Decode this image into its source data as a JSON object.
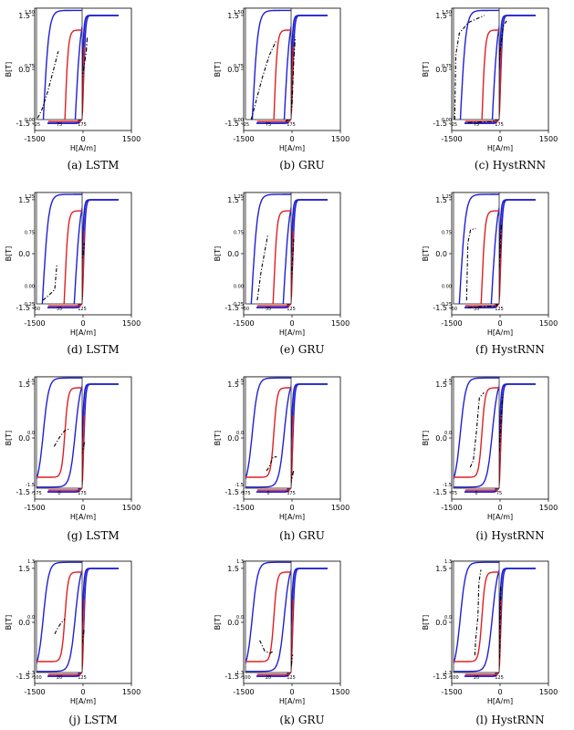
{
  "figure": {
    "captions": [
      "(a) LSTM",
      "(b) GRU",
      "(c) HystRNN",
      "(d) LSTM",
      "(e) GRU",
      "(f) HystRNN",
      "(g) LSTM",
      "(h) GRU",
      "(i) HystRNN",
      "(j) LSTM",
      "(k) GRU",
      "(l) HystRNN"
    ]
  },
  "colors": {
    "reference": "#1f1fd6",
    "training": "#e02020",
    "prediction": "#000000"
  },
  "chart_data": [
    {
      "panel": "a",
      "type": "line",
      "model": "LSTM",
      "xlabel": "H[A/m]",
      "ylabel": "B[T]",
      "xticks": [
        "-1500",
        "0",
        "1500"
      ],
      "yticks": [
        "-1.5",
        "0.0",
        "1.5"
      ],
      "xlim": [
        -1500,
        1500
      ],
      "ylim": [
        -1.7,
        1.7
      ],
      "inset": {
        "xticks": [
          "-25",
          "75",
          "175"
        ],
        "yticks": [
          "0.00",
          "0.75",
          "1.50"
        ],
        "xlim": [
          -25,
          175
        ],
        "ylim": [
          0,
          1.55
        ],
        "prediction": [
          [
            -20,
            0.02
          ],
          [
            0,
            0.15
          ],
          [
            25,
            0.4
          ],
          [
            50,
            0.7
          ],
          [
            70,
            0.95
          ]
        ]
      },
      "prediction_main": [
        [
          -50,
          -0.3
        ],
        [
          0,
          -0.1
        ],
        [
          50,
          0.2
        ],
        [
          100,
          0.5
        ],
        [
          130,
          0.9
        ]
      ]
    },
    {
      "panel": "b",
      "type": "line",
      "model": "GRU",
      "xlabel": "H[A/m]",
      "ylabel": "B[T]",
      "xticks": [
        "-1500",
        "0",
        "1500"
      ],
      "yticks": [
        "-1.5",
        "0.0",
        "1.5"
      ],
      "xlim": [
        -1500,
        1500
      ],
      "ylim": [
        -1.7,
        1.7
      ],
      "inset": {
        "xticks": [
          "-25",
          "75",
          "175"
        ],
        "yticks": [
          "0.00",
          "0.75",
          "1.50"
        ],
        "xlim": [
          -25,
          175
        ],
        "ylim": [
          0,
          1.55
        ],
        "prediction": [
          [
            0,
            0.0
          ],
          [
            25,
            0.3
          ],
          [
            50,
            0.6
          ],
          [
            80,
            0.9
          ],
          [
            110,
            1.1
          ]
        ]
      },
      "prediction_main": [
        [
          -200,
          -1.45
        ],
        [
          -50,
          -1.3
        ],
        [
          0,
          -1.0
        ],
        [
          50,
          0.2
        ],
        [
          100,
          0.9
        ]
      ]
    },
    {
      "panel": "c",
      "type": "line",
      "model": "HystRNN",
      "xlabel": "H[A/m]",
      "ylabel": "B[T]",
      "xticks": [
        "-1500",
        "0",
        "1500"
      ],
      "yticks": [
        "-1.5",
        "0.0",
        "1.5"
      ],
      "xlim": [
        -1500,
        1500
      ],
      "ylim": [
        -1.7,
        1.7
      ],
      "inset": {
        "xticks": [
          "-25",
          "75",
          "175"
        ],
        "yticks": [
          "0.00",
          "0.75",
          "1.50"
        ],
        "xlim": [
          -25,
          175
        ],
        "ylim": [
          0,
          1.55
        ],
        "prediction": [
          [
            -20,
            0.0
          ],
          [
            -15,
            0.9
          ],
          [
            0,
            1.2
          ],
          [
            40,
            1.35
          ],
          [
            110,
            1.45
          ]
        ]
      },
      "prediction_main": [
        [
          -1000,
          -1.48
        ],
        [
          -200,
          -1.45
        ],
        [
          0,
          0.5
        ],
        [
          100,
          1.2
        ],
        [
          200,
          1.35
        ]
      ]
    },
    {
      "panel": "d",
      "type": "line",
      "model": "LSTM",
      "xlabel": "H[A/m]",
      "ylabel": "B[T]",
      "xticks": [
        "-1500",
        "0",
        "1500"
      ],
      "yticks": [
        "-1.5",
        "0.0",
        "1.5"
      ],
      "xlim": [
        -1500,
        1500
      ],
      "ylim": [
        -1.7,
        1.7
      ],
      "inset": {
        "xticks": [
          "-50",
          "35",
          "125"
        ],
        "yticks": [
          "-0.25",
          "0.00",
          "0.75",
          "1.25"
        ],
        "xlim": [
          -50,
          125
        ],
        "ylim": [
          -0.25,
          1.3
        ],
        "prediction": [
          [
            -25,
            -0.2
          ],
          [
            0,
            -0.12
          ],
          [
            20,
            -0.05
          ],
          [
            28,
            0.3
          ]
        ]
      },
      "prediction_main": [
        [
          -60,
          -0.3
        ],
        [
          0,
          -0.05
        ],
        [
          30,
          0.3
        ]
      ]
    },
    {
      "panel": "e",
      "type": "line",
      "model": "GRU",
      "xlabel": "H[A/m]",
      "ylabel": "B[T]",
      "xticks": [
        "-1500",
        "0",
        "1500"
      ],
      "yticks": [
        "-1.5",
        "0.0",
        "1.5"
      ],
      "xlim": [
        -1500,
        1500
      ],
      "ylim": [
        -1.7,
        1.7
      ],
      "inset": {
        "xticks": [
          "-50",
          "35",
          "125"
        ],
        "yticks": [
          "-0.25",
          "0.00",
          "0.75",
          "1.25"
        ],
        "xlim": [
          -50,
          125
        ],
        "ylim": [
          -0.25,
          1.3
        ],
        "prediction": [
          [
            -5,
            -0.2
          ],
          [
            10,
            0.2
          ],
          [
            25,
            0.5
          ],
          [
            35,
            0.7
          ]
        ]
      },
      "prediction_main": [
        [
          -600,
          -1.3
        ],
        [
          -100,
          -1.0
        ],
        [
          0,
          -0.5
        ],
        [
          50,
          0.4
        ]
      ]
    },
    {
      "panel": "f",
      "type": "line",
      "model": "HystRNN",
      "xlabel": "H[A/m]",
      "ylabel": "B[T]",
      "xticks": [
        "-1500",
        "0",
        "1500"
      ],
      "yticks": [
        "-1.5",
        "0.0",
        "1.5"
      ],
      "xlim": [
        -1500,
        1500
      ],
      "ylim": [
        -1.7,
        1.7
      ],
      "inset": {
        "xticks": [
          "-50",
          "35",
          "125"
        ],
        "yticks": [
          "-0.25",
          "0.00",
          "0.75",
          "1.25"
        ],
        "xlim": [
          -50,
          125
        ],
        "ylim": [
          -0.25,
          1.3
        ],
        "prediction": [
          [
            0,
            -0.2
          ],
          [
            5,
            0.6
          ],
          [
            15,
            0.78
          ],
          [
            35,
            0.8
          ]
        ]
      },
      "prediction_main": [
        [
          -1000,
          -1.5
        ],
        [
          -100,
          -1.45
        ],
        [
          0,
          0.0
        ],
        [
          40,
          0.8
        ]
      ]
    },
    {
      "panel": "g",
      "type": "line",
      "model": "LSTM",
      "xlabel": "H[A/m]",
      "ylabel": "B[T]",
      "xticks": [
        "-1500",
        "0",
        "1500"
      ],
      "yticks": [
        "-1.5",
        "0.0",
        "1.5"
      ],
      "xlim": [
        -1500,
        1500
      ],
      "ylim": [
        -1.7,
        1.7
      ],
      "inset": {
        "xticks": [
          "-175",
          "0",
          "175"
        ],
        "yticks": [
          "-1.5",
          "0.0",
          "1.5"
        ],
        "xlim": [
          -175,
          175
        ],
        "ylim": [
          -1.6,
          1.6
        ],
        "prediction": [
          [
            -40,
            -0.4
          ],
          [
            0,
            -0.15
          ],
          [
            40,
            0.05
          ],
          [
            70,
            0.1
          ]
        ]
      },
      "prediction_main": [
        [
          -50,
          -0.5
        ],
        [
          0,
          -0.3
        ],
        [
          50,
          -0.1
        ]
      ]
    },
    {
      "panel": "h",
      "type": "line",
      "model": "GRU",
      "xlabel": "H[A/m]",
      "ylabel": "B[T]",
      "xticks": [
        "-1500",
        "0",
        "1500"
      ],
      "yticks": [
        "-1.5",
        "0.0",
        "1.5"
      ],
      "xlim": [
        -1500,
        1500
      ],
      "ylim": [
        -1.7,
        1.7
      ],
      "inset": {
        "xticks": [
          "-375",
          "0",
          "375"
        ],
        "yticks": [
          "-1.5",
          "0.0",
          "1.5"
        ],
        "xlim": [
          -375,
          375
        ],
        "ylim": [
          -1.6,
          1.6
        ],
        "prediction": [
          [
            -30,
            -1.1
          ],
          [
            10,
            -1.0
          ],
          [
            80,
            -0.7
          ],
          [
            140,
            -0.7
          ]
        ]
      },
      "prediction_main": [
        [
          -50,
          -1.3
        ],
        [
          0,
          -1.1
        ],
        [
          50,
          -0.9
        ]
      ]
    },
    {
      "panel": "i",
      "type": "line",
      "model": "HystRNN",
      "xlabel": "H[A/m]",
      "ylabel": "B[T]",
      "xticks": [
        "-1500",
        "0",
        "1500"
      ],
      "yticks": [
        "-1.5",
        "0.0",
        "1.5"
      ],
      "xlim": [
        -1500,
        1500
      ],
      "ylim": [
        -1.7,
        1.7
      ],
      "inset": {
        "xticks": [
          "-75",
          "0",
          "75"
        ],
        "yticks": [
          "-1.5",
          "0.0",
          "1.5"
        ],
        "xlim": [
          -75,
          75
        ],
        "ylim": [
          -1.6,
          1.6
        ],
        "prediction": [
          [
            -20,
            -1.0
          ],
          [
            -10,
            -0.8
          ],
          [
            0,
            0.0
          ],
          [
            10,
            1.0
          ],
          [
            25,
            1.15
          ]
        ]
      },
      "prediction_main": [
        [
          -80,
          -1.2
        ],
        [
          0,
          0.0
        ],
        [
          80,
          1.2
        ]
      ]
    },
    {
      "panel": "j",
      "type": "line",
      "model": "LSTM",
      "xlabel": "H[A/m]",
      "ylabel": "B[T]",
      "xticks": [
        "-1500",
        "0",
        "1500"
      ],
      "yticks": [
        "-1.5",
        "0.0",
        "1.5"
      ],
      "xlim": [
        -1500,
        1500
      ],
      "ylim": [
        -1.7,
        1.7
      ],
      "inset": {
        "xticks": [
          "-100",
          "20",
          "125"
        ],
        "yticks": [
          "-1.3",
          "0.0",
          "1.3"
        ],
        "xlim": [
          -100,
          125
        ],
        "ylim": [
          -1.3,
          1.3
        ],
        "prediction": [
          [
            -10,
            -0.4
          ],
          [
            0,
            -0.3
          ],
          [
            20,
            -0.15
          ],
          [
            40,
            -0.05
          ]
        ]
      },
      "prediction_main": [
        [
          -30,
          -0.6
        ],
        [
          0,
          -0.4
        ],
        [
          30,
          -0.2
        ]
      ]
    },
    {
      "panel": "k",
      "type": "line",
      "model": "GRU",
      "xlabel": "H[A/m]",
      "ylabel": "B[T]",
      "xticks": [
        "-1500",
        "0",
        "1500"
      ],
      "yticks": [
        "-1.5",
        "0.0",
        "1.5"
      ],
      "xlim": [
        -1500,
        1500
      ],
      "ylim": [
        -1.7,
        1.7
      ],
      "inset": {
        "xticks": [
          "-100",
          "20",
          "125"
        ],
        "yticks": [
          "-1.3",
          "0.0",
          "1.3"
        ],
        "xlim": [
          -100,
          125
        ],
        "ylim": [
          -1.3,
          1.3
        ],
        "prediction": [
          [
            -30,
            -0.55
          ],
          [
            -5,
            -0.8
          ],
          [
            20,
            -0.85
          ],
          [
            40,
            -0.8
          ]
        ]
      },
      "prediction_main": [
        [
          -20,
          -1.2
        ],
        [
          0,
          -1.0
        ],
        [
          20,
          -0.9
        ]
      ]
    },
    {
      "panel": "l",
      "type": "line",
      "model": "HystRNN",
      "xlabel": "H[A/m]",
      "ylabel": "B[T]",
      "xticks": [
        "-1500",
        "0",
        "1500"
      ],
      "yticks": [
        "-1.5",
        "0.0",
        "1.5"
      ],
      "xlim": [
        -1500,
        1500
      ],
      "ylim": [
        -1.7,
        1.7
      ],
      "inset": {
        "xticks": [
          "-100",
          "20",
          "125"
        ],
        "yticks": [
          "-1.3",
          "0.0",
          "1.3"
        ],
        "xlim": [
          -100,
          125
        ],
        "ylim": [
          -1.3,
          1.3
        ],
        "prediction": [
          [
            5,
            -0.9
          ],
          [
            10,
            -0.5
          ],
          [
            20,
            0.0
          ],
          [
            25,
            0.8
          ],
          [
            35,
            1.1
          ]
        ]
      },
      "prediction_main": [
        [
          -20,
          -1.0
        ],
        [
          0,
          0.0
        ],
        [
          20,
          1.0
        ]
      ]
    }
  ]
}
